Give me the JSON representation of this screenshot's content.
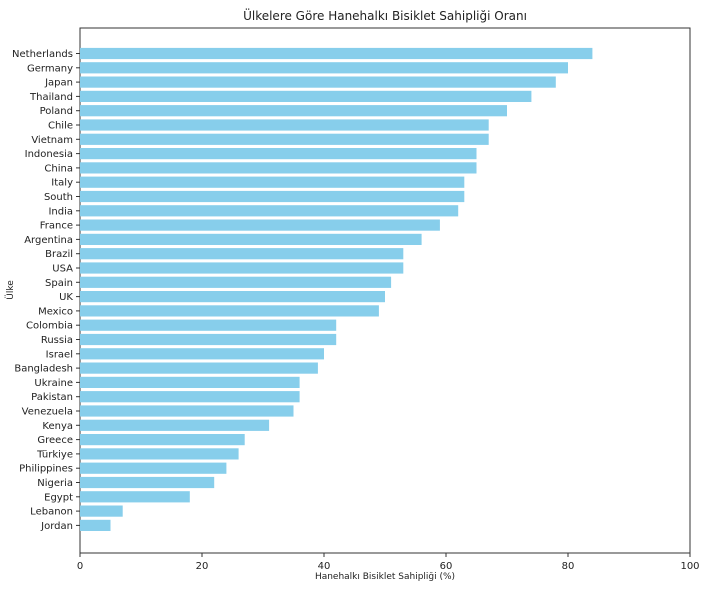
{
  "chart_data": {
    "type": "bar",
    "orientation": "horizontal",
    "title": "Ülkelere Göre Hanehalkı Bisiklet Sahipliği Oranı",
    "xlabel": "Hanehalkı Bisiklet Sahipliği (%)",
    "ylabel": "Ülke",
    "xlim": [
      0,
      100
    ],
    "xticks": [
      0,
      20,
      40,
      60,
      80,
      100
    ],
    "grid": false,
    "bar_color": "#87CEEB",
    "categories": [
      "Netherlands",
      "Germany",
      "Japan",
      "Thailand",
      "Poland",
      "Chile",
      "Vietnam",
      "Indonesia",
      "China",
      "Italy",
      "South",
      "India",
      "France",
      "Argentina",
      "Brazil",
      "USA",
      "Spain",
      "UK",
      "Mexico",
      "Colombia",
      "Russia",
      "Israel",
      "Bangladesh",
      "Ukraine",
      "Pakistan",
      "Venezuela",
      "Kenya",
      "Greece",
      "Türkiye",
      "Philippines",
      "Nigeria",
      "Egypt",
      "Lebanon",
      "Jordan"
    ],
    "values": [
      84,
      80,
      78,
      74,
      70,
      67,
      67,
      65,
      65,
      63,
      63,
      62,
      59,
      56,
      53,
      53,
      51,
      50,
      49,
      42,
      42,
      40,
      39,
      36,
      36,
      35,
      31,
      27,
      26,
      24,
      22,
      18,
      7,
      5
    ]
  }
}
